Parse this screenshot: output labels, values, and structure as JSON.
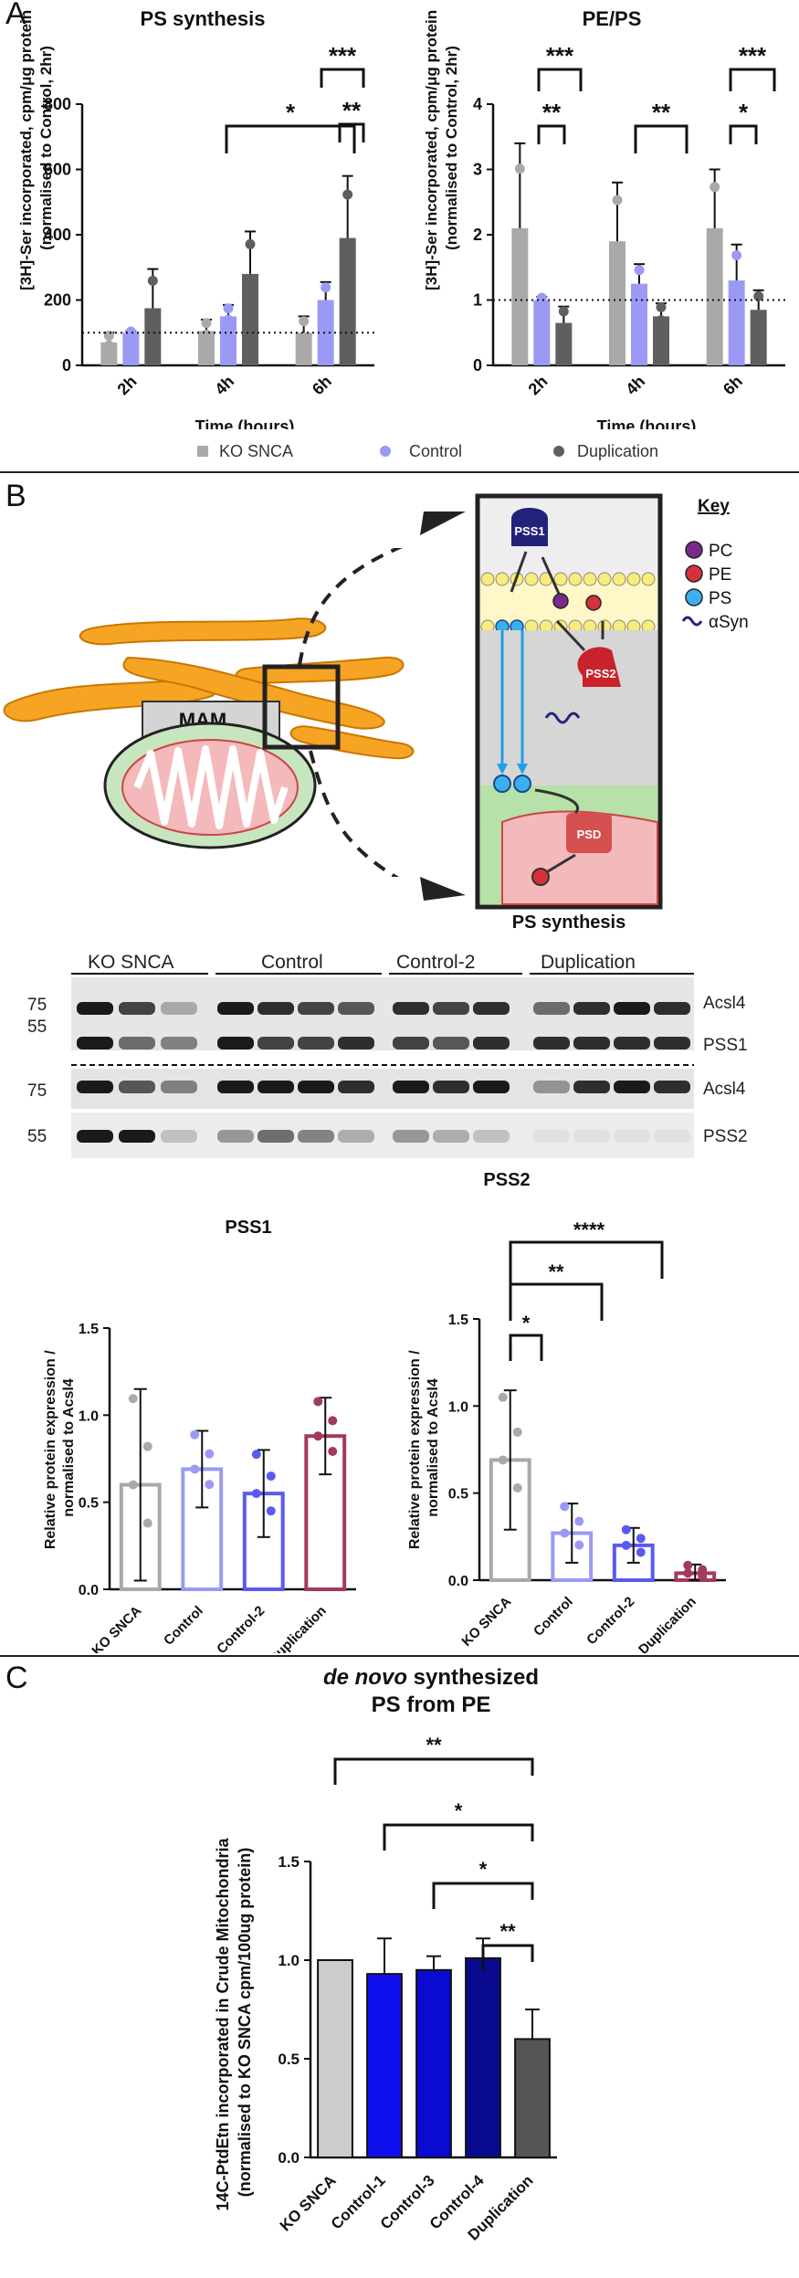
{
  "panels": {
    "a": "A",
    "b": "B",
    "c": "C"
  },
  "panel_a": {
    "legend": [
      "KO SNCA",
      "Control",
      "Duplication"
    ],
    "colors": {
      "ko": "#a9a9a9",
      "control": "#9a9af5",
      "dup": "#5f5f5f"
    },
    "ps_synthesis": {
      "title": "PS synthesis",
      "ylabel_line1": "[3H]-Ser incorporated, cpm/μg protein",
      "ylabel_line2": "(normalised to Control, 2hr)",
      "xlabel": "Time (hours)",
      "significance": [
        "*",
        "***",
        "**"
      ]
    },
    "pe_ps": {
      "title": "PE/PS",
      "ylabel_line1": "[3H]-Ser incorporated, cpm/μg protein",
      "ylabel_line2": "(normalised to Control, 2hr)",
      "xlabel": "Time (hours)",
      "significance": [
        "***",
        "**",
        "**",
        "***",
        "*"
      ]
    }
  },
  "panel_b": {
    "mam_label": "MAM",
    "key_title": "Key",
    "key": [
      "PC",
      "PE",
      "PS",
      "αSyn"
    ],
    "enzymes": [
      "PSS1",
      "PSS2",
      "PSD"
    ],
    "schematic_caption": "PS synthesis",
    "blot": {
      "groups": [
        "KO SNCA",
        "Control",
        "Control-2",
        "Duplication"
      ],
      "proteins": [
        "Acsl4",
        "PSS1",
        "Acsl4",
        "PSS2"
      ],
      "markers": [
        "75",
        "55",
        "75",
        "55"
      ]
    },
    "pss1_title": "PSS1",
    "pss2_title": "PSS2",
    "ylabel_line1": "Relative protein expression /",
    "ylabel_line2": "normalised to Acsl4",
    "significance": [
      "*",
      "**",
      "****"
    ]
  },
  "panel_c": {
    "title_italic": "de novo",
    "title_rest": " synthesized",
    "title_line2": "PS from PE",
    "ylabel_line1": "14C-PtdEtn incorporated in Crude Mitochondria",
    "ylabel_line2": "(normalised to KO SNCA cpm/100ug protein)",
    "significance": [
      "**",
      "*",
      "*",
      "**"
    ]
  },
  "chart_data": [
    {
      "type": "bar",
      "title": "PS synthesis",
      "xlabel": "Time (hours)",
      "ylabel": "[3H]-Ser incorporated, cpm/μg protein (normalised to Control, 2hr)",
      "categories": [
        "2h",
        "4h",
        "6h"
      ],
      "ylim": [
        0,
        800
      ],
      "yticks": [
        0,
        200,
        400,
        600,
        800
      ],
      "reference_line": 100,
      "series": [
        {
          "name": "KO SNCA",
          "values": [
            70,
            105,
            100
          ],
          "err": [
            30,
            35,
            50
          ]
        },
        {
          "name": "Control",
          "values": [
            100,
            150,
            200
          ],
          "err": [
            5,
            35,
            55
          ]
        },
        {
          "name": "Duplication",
          "values": [
            175,
            280,
            390
          ],
          "err": [
            120,
            130,
            190
          ]
        }
      ]
    },
    {
      "type": "bar",
      "title": "PE/PS",
      "xlabel": "Time (hours)",
      "ylabel": "[3H]-Ser incorporated, cpm/μg protein (normalised to Control, 2hr)",
      "categories": [
        "2h",
        "4h",
        "6h"
      ],
      "ylim": [
        0,
        4
      ],
      "yticks": [
        0,
        1,
        2,
        3,
        4
      ],
      "reference_line": 1,
      "series": [
        {
          "name": "KO SNCA",
          "values": [
            2.1,
            1.9,
            2.1
          ],
          "err": [
            1.3,
            0.9,
            0.9
          ]
        },
        {
          "name": "Control",
          "values": [
            1.0,
            1.25,
            1.3
          ],
          "err": [
            0.05,
            0.3,
            0.55
          ]
        },
        {
          "name": "Duplication",
          "values": [
            0.65,
            0.75,
            0.85
          ],
          "err": [
            0.25,
            0.2,
            0.3
          ]
        }
      ]
    },
    {
      "type": "bar",
      "title": "PSS1",
      "ylabel": "Relative protein expression / normalised to Acsl4",
      "categories": [
        "KO SNCA",
        "Control",
        "Control-2",
        "Duplication"
      ],
      "ylim": [
        0,
        1.5
      ],
      "yticks": [
        0.0,
        0.5,
        1.0,
        1.5
      ],
      "values": [
        0.6,
        0.69,
        0.55,
        0.88
      ],
      "err": [
        0.55,
        0.22,
        0.25,
        0.22
      ],
      "colors": [
        "#a9a9a9",
        "#9a9af5",
        "#5a5af0",
        "#a33a5c"
      ]
    },
    {
      "type": "bar",
      "title": "PSS2",
      "ylabel": "Relative protein expression / normalised to Acsl4",
      "categories": [
        "KO SNCA",
        "Control",
        "Control-2",
        "Duplication"
      ],
      "ylim": [
        0,
        1.5
      ],
      "yticks": [
        0.0,
        0.5,
        1.0,
        1.5
      ],
      "values": [
        0.69,
        0.27,
        0.2,
        0.04
      ],
      "err": [
        0.4,
        0.17,
        0.1,
        0.05
      ],
      "colors": [
        "#a9a9a9",
        "#9a9af5",
        "#5a5af0",
        "#a33a5c"
      ]
    },
    {
      "type": "bar",
      "title": "de novo synthesized PS from PE",
      "ylabel": "14C-PtdEtn incorporated in Crude Mitochondria (normalised to KO SNCA cpm/100ug protein)",
      "categories": [
        "KO SNCA",
        "Control-1",
        "Control-3",
        "Control-4",
        "Duplication"
      ],
      "ylim": [
        0,
        1.5
      ],
      "yticks": [
        0.0,
        0.5,
        1.0,
        1.5
      ],
      "values": [
        1.0,
        0.93,
        0.95,
        1.01,
        0.6
      ],
      "err": [
        0.0,
        0.18,
        0.07,
        0.1,
        0.15
      ],
      "colors": [
        "#cccccc",
        "#1010ee",
        "#0a0ad0",
        "#0a0a90",
        "#555555"
      ]
    }
  ]
}
